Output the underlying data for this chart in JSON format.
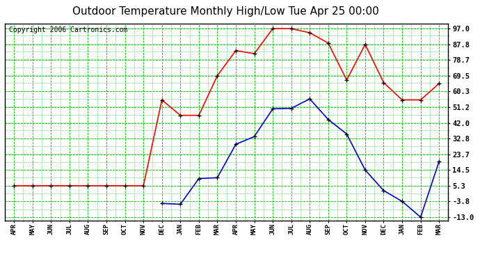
{
  "title": "Outdoor Temperature Monthly High/Low Tue Apr 25 00:00",
  "copyright": "Copyright 2006 Cartronics.com",
  "x_labels": [
    "APR",
    "MAY",
    "JUN",
    "JUL",
    "AUG",
    "SEP",
    "OCT",
    "NOV",
    "DEC",
    "JAN",
    "FEB",
    "MAR",
    "APR",
    "MAY",
    "JUN",
    "JUL",
    "AUG",
    "SEP",
    "OCT",
    "NOV",
    "DEC",
    "JAN",
    "FEB",
    "MAR"
  ],
  "high_values": [
    5.3,
    5.3,
    5.3,
    5.3,
    5.3,
    5.3,
    5.3,
    5.3,
    55.4,
    46.4,
    46.4,
    69.5,
    84.2,
    82.4,
    97.0,
    97.0,
    94.6,
    88.6,
    67.0,
    87.8,
    65.5,
    55.4,
    55.4,
    65.0
  ],
  "low_values": [
    null,
    null,
    null,
    null,
    null,
    null,
    null,
    null,
    -5.0,
    -5.5,
    9.5,
    10.0,
    29.5,
    34.0,
    50.2,
    50.5,
    56.0,
    44.0,
    35.5,
    14.5,
    2.5,
    -3.8,
    -13.0,
    19.5
  ],
  "y_ticks": [
    97.0,
    87.8,
    78.7,
    69.5,
    60.3,
    51.2,
    42.0,
    32.8,
    23.7,
    14.5,
    5.3,
    -3.8,
    -13.0
  ],
  "y_min": -13.0,
  "y_max": 97.0,
  "high_color": "#ff0000",
  "low_color": "#0000cc",
  "marker_color": "#000000",
  "bg_color": "#ffffff",
  "grid_color": "#00bb00",
  "title_fontsize": 11,
  "copyright_fontsize": 7
}
